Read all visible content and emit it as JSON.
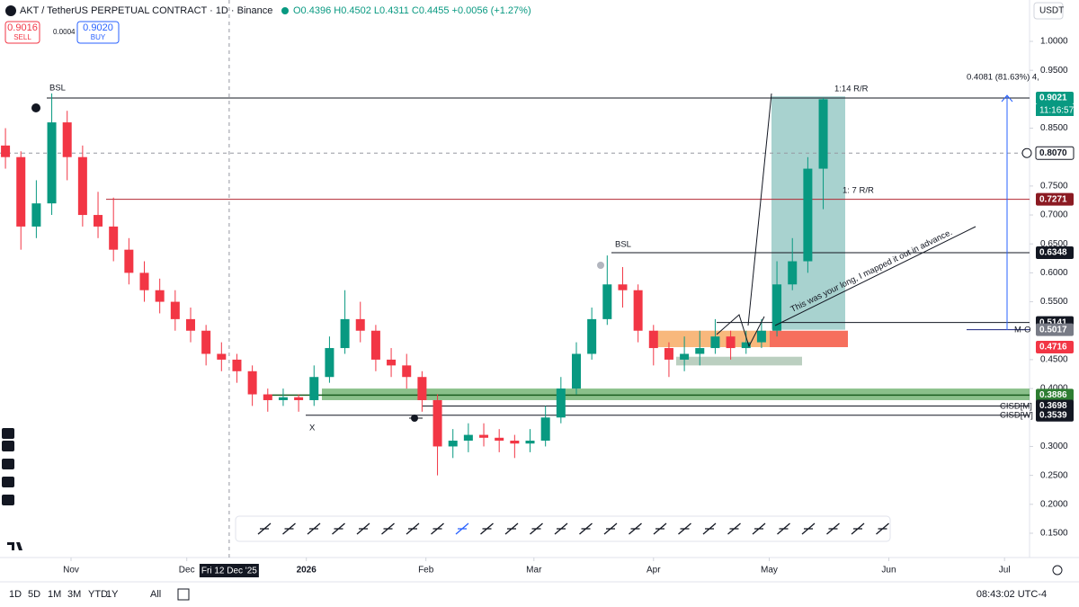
{
  "header": {
    "title": "AKT / TetherUS PERPETUAL CONTRACT · 1D · Binance",
    "ohlc": "O0.4396 H0.4502 L0.4311 C0.4455 +0.0056 (+1.27%)",
    "sell_price": "0.9016",
    "sell": "SELL",
    "spread": "0.0004",
    "buy_price": "0.9020",
    "buy": "BUY",
    "currency": "USDT"
  },
  "chart_data": {
    "type": "candlestick",
    "up_color": "#089981",
    "down_color": "#f23645",
    "x": [
      "2025-10-15",
      "2025-10-19",
      "2025-10-23",
      "2025-10-27",
      "2025-10-31",
      "2025-11-04",
      "2025-11-08",
      "2025-11-12",
      "2025-11-16",
      "2025-11-20",
      "2025-11-24",
      "2025-11-28",
      "2025-12-02",
      "2025-12-06",
      "2025-12-10",
      "2025-12-14",
      "2025-12-18",
      "2025-12-22",
      "2025-12-26",
      "2025-12-30",
      "2026-01-03",
      "2026-01-07",
      "2026-01-11",
      "2026-01-15",
      "2026-01-19",
      "2026-01-23",
      "2026-01-27",
      "2026-01-31",
      "2026-02-04",
      "2026-02-08",
      "2026-02-12",
      "2026-02-16",
      "2026-02-20",
      "2026-02-24",
      "2026-02-28",
      "2026-03-04",
      "2026-03-08",
      "2026-03-12",
      "2026-03-16",
      "2026-03-20",
      "2026-03-24",
      "2026-03-28",
      "2026-04-01",
      "2026-04-05",
      "2026-04-09",
      "2026-04-13",
      "2026-04-17",
      "2026-04-21",
      "2026-04-25",
      "2026-04-29",
      "2026-05-03",
      "2026-05-07",
      "2026-05-11",
      "2026-05-15"
    ],
    "candles": [
      [
        0.82,
        0.85,
        0.78,
        0.8
      ],
      [
        0.8,
        0.81,
        0.64,
        0.68
      ],
      [
        0.68,
        0.76,
        0.66,
        0.72
      ],
      [
        0.72,
        0.91,
        0.7,
        0.86
      ],
      [
        0.86,
        0.88,
        0.76,
        0.8
      ],
      [
        0.8,
        0.82,
        0.68,
        0.7
      ],
      [
        0.7,
        0.74,
        0.66,
        0.68
      ],
      [
        0.68,
        0.73,
        0.62,
        0.64
      ],
      [
        0.64,
        0.66,
        0.58,
        0.6
      ],
      [
        0.6,
        0.62,
        0.55,
        0.57
      ],
      [
        0.57,
        0.59,
        0.53,
        0.55
      ],
      [
        0.55,
        0.57,
        0.5,
        0.52
      ],
      [
        0.52,
        0.54,
        0.48,
        0.5
      ],
      [
        0.5,
        0.51,
        0.44,
        0.46
      ],
      [
        0.46,
        0.48,
        0.43,
        0.45
      ],
      [
        0.45,
        0.46,
        0.41,
        0.43
      ],
      [
        0.43,
        0.44,
        0.37,
        0.39
      ],
      [
        0.39,
        0.4,
        0.36,
        0.38
      ],
      [
        0.38,
        0.4,
        0.37,
        0.385
      ],
      [
        0.385,
        0.39,
        0.36,
        0.38
      ],
      [
        0.38,
        0.44,
        0.37,
        0.42
      ],
      [
        0.42,
        0.49,
        0.41,
        0.47
      ],
      [
        0.47,
        0.57,
        0.46,
        0.52
      ],
      [
        0.52,
        0.55,
        0.48,
        0.5
      ],
      [
        0.5,
        0.51,
        0.43,
        0.45
      ],
      [
        0.45,
        0.47,
        0.42,
        0.44
      ],
      [
        0.44,
        0.46,
        0.4,
        0.42
      ],
      [
        0.42,
        0.43,
        0.36,
        0.38
      ],
      [
        0.38,
        0.39,
        0.25,
        0.3
      ],
      [
        0.3,
        0.33,
        0.28,
        0.31
      ],
      [
        0.31,
        0.34,
        0.29,
        0.32
      ],
      [
        0.32,
        0.34,
        0.3,
        0.315
      ],
      [
        0.315,
        0.33,
        0.29,
        0.31
      ],
      [
        0.31,
        0.32,
        0.28,
        0.305
      ],
      [
        0.305,
        0.33,
        0.29,
        0.31
      ],
      [
        0.31,
        0.37,
        0.3,
        0.35
      ],
      [
        0.35,
        0.42,
        0.34,
        0.4
      ],
      [
        0.4,
        0.48,
        0.39,
        0.46
      ],
      [
        0.46,
        0.54,
        0.45,
        0.52
      ],
      [
        0.52,
        0.63,
        0.51,
        0.58
      ],
      [
        0.58,
        0.61,
        0.54,
        0.57
      ],
      [
        0.57,
        0.58,
        0.48,
        0.5
      ],
      [
        0.5,
        0.51,
        0.44,
        0.47
      ],
      [
        0.47,
        0.48,
        0.42,
        0.45
      ],
      [
        0.45,
        0.49,
        0.43,
        0.46
      ],
      [
        0.46,
        0.5,
        0.44,
        0.47
      ],
      [
        0.47,
        0.52,
        0.46,
        0.49
      ],
      [
        0.49,
        0.5,
        0.45,
        0.47
      ],
      [
        0.47,
        0.5,
        0.46,
        0.48
      ],
      [
        0.48,
        0.52,
        0.47,
        0.5
      ],
      [
        0.5,
        0.62,
        0.49,
        0.58
      ],
      [
        0.58,
        0.66,
        0.57,
        0.62
      ],
      [
        0.62,
        0.8,
        0.6,
        0.78
      ],
      [
        0.78,
        0.9021,
        0.71,
        0.9
      ]
    ],
    "ylim": [
      0.1,
      1.07
    ],
    "yticks": [
      {
        "value": 1,
        "label": "1.0000"
      },
      {
        "value": 0.95,
        "label": "0.9500"
      },
      {
        "value": 0.85,
        "label": "0.8500"
      },
      {
        "value": 0.75,
        "label": "0.7500"
      },
      {
        "value": 0.7,
        "label": "0.7000"
      },
      {
        "value": 0.65,
        "label": "0.6500"
      },
      {
        "value": 0.6,
        "label": "0.6000"
      },
      {
        "value": 0.55,
        "label": "0.5500"
      },
      {
        "value": 0.45,
        "label": "0.4500"
      },
      {
        "value": 0.4,
        "label": "0.4000"
      },
      {
        "value": 0.3,
        "label": "0.3000"
      },
      {
        "value": 0.25,
        "label": "0.2500"
      },
      {
        "value": 0.2,
        "label": "0.2000"
      },
      {
        "value": 0.15,
        "label": "0.1500"
      }
    ],
    "xticks": [
      {
        "value": "2025-11-01",
        "label": "Nov"
      },
      {
        "value": "2025-12-01",
        "label": "Dec"
      },
      {
        "value": "2026-01-01",
        "label": "2026"
      },
      {
        "value": "2026-02-01",
        "label": "Feb"
      },
      {
        "value": "2026-03-01",
        "label": "Mar"
      },
      {
        "value": "2026-04-01",
        "label": "Apr"
      },
      {
        "value": "2026-05-01",
        "label": "May"
      },
      {
        "value": "2026-06-01",
        "label": "Jun"
      },
      {
        "value": "2026-07-01",
        "label": "Jul"
      }
    ],
    "crosshair_date": {
      "value": "2025-12-12",
      "label": "Fri 12 Dec '25"
    },
    "price_labels": [
      {
        "value": 0.9021,
        "label": "0.9021",
        "color": "#089981"
      },
      {
        "value": 0.807,
        "label": "0.8070",
        "color": "#ffffff"
      },
      {
        "value": 0.7271,
        "label": "0.7271",
        "color": "#8b1a22"
      },
      {
        "value": 0.6348,
        "label": "0.6348",
        "color": "#131722"
      },
      {
        "value": 0.5141,
        "label": "0.5141",
        "color": "#131722"
      },
      {
        "value": 0.5017,
        "label": "0.5017",
        "color": "#787b86"
      },
      {
        "value": 0.4716,
        "label": "0.4716",
        "color": "#f23645"
      },
      {
        "value": 0.3886,
        "label": "0.3886",
        "color": "#2e7d32"
      },
      {
        "value": 0.3698,
        "label": "0.3698",
        "color": "#131722"
      },
      {
        "value": 0.3539,
        "label": "0.3539",
        "color": "#131722"
      }
    ],
    "countdown": "11:16:57",
    "zones": [
      {
        "y": [
          0.5017,
          0.905
        ],
        "color": "rgba(110,180,175,0.6)"
      },
      {
        "y": [
          0.38,
          0.4
        ],
        "color": "rgba(60,150,60,0.6)"
      },
      {
        "y": [
          0.4716,
          0.5
        ],
        "color": "rgba(245,160,80,0.75)"
      },
      {
        "y": [
          0.4716,
          0.5
        ],
        "color": "rgba(245,95,75,0.9)"
      },
      {
        "y": [
          0.44,
          0.455
        ],
        "color": "rgba(120,160,130,0.5)"
      }
    ],
    "annotations": {
      "bsl_top": "BSL",
      "bsl_mid": "BSL",
      "rr14": "1:14 R/R",
      "rr7": "1: 7 R/R",
      "x_mark": "X",
      "note": "This was your long, I mapped it out in advance.",
      "mo": "M-O",
      "cisd_m": "CISD[M]",
      "cisd_w": "CISD[W]",
      "measure": "0.4081 (81.63%) 4,"
    },
    "grid": false
  },
  "footer": {
    "ranges": [
      "1D",
      "5D",
      "1M",
      "3M",
      "YTD",
      "1Y",
      "All"
    ],
    "clock": "08:43:02 UTC-4"
  }
}
